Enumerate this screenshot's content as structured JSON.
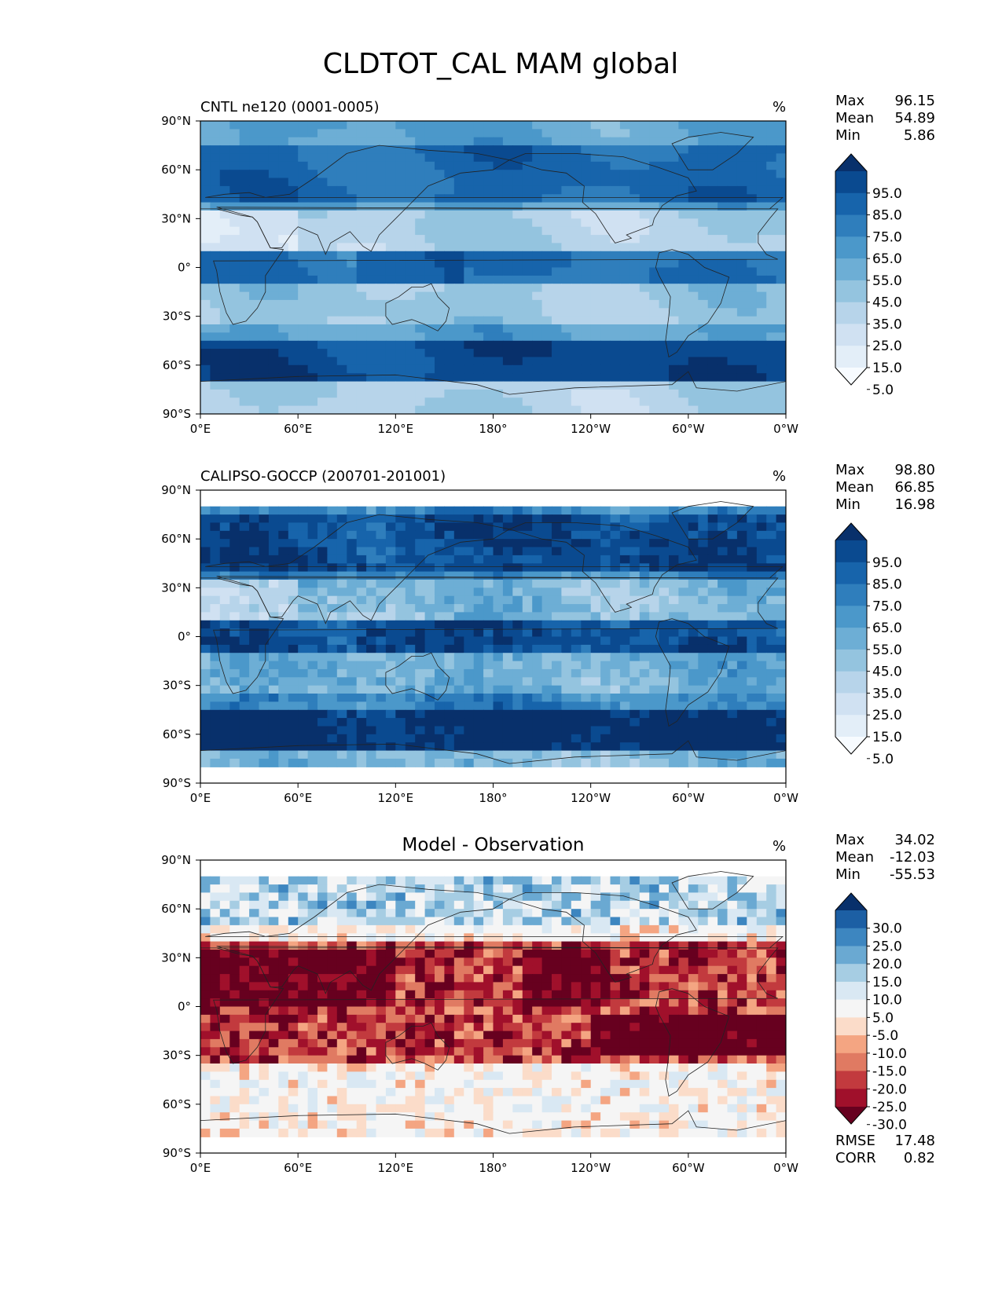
{
  "figure_title": "CLDTOT_CAL MAM global",
  "chart_data": [
    {
      "type": "heatmap",
      "panel": "model",
      "title": "CNTL ne120 (0001-0005)",
      "center_title": "",
      "units": "%",
      "stats": [
        {
          "label": "Max",
          "value": "96.15"
        },
        {
          "label": "Mean",
          "value": "54.89"
        },
        {
          "label": "Min",
          "value": "5.86"
        }
      ],
      "x_ticks": [
        "0°E",
        "60°E",
        "120°E",
        "180°",
        "120°W",
        "60°W",
        "0°W"
      ],
      "y_ticks": [
        "90°N",
        "60°N",
        "30°N",
        "0°",
        "30°S",
        "60°S",
        "90°S"
      ],
      "xlim": [
        0,
        360
      ],
      "ylim": [
        -90,
        90
      ],
      "colorbar": {
        "extend": "both",
        "levels": [
          "95.0",
          "85.0",
          "75.0",
          "65.0",
          "55.0",
          "45.0",
          "35.0",
          "25.0",
          "15.0",
          "5.0"
        ],
        "colors": [
          "#08306b",
          "#0a4a90",
          "#1764ab",
          "#2f7ebc",
          "#4b98ca",
          "#6daed5",
          "#94c4df",
          "#b7d4ea",
          "#d0e1f2",
          "#e3eef8",
          "#f7fbff"
        ]
      },
      "extra_stats": []
    },
    {
      "type": "heatmap",
      "panel": "observation",
      "title": "CALIPSO-GOCCP (200701-201001)",
      "center_title": "",
      "units": "%",
      "stats": [
        {
          "label": "Max",
          "value": "98.80"
        },
        {
          "label": "Mean",
          "value": "66.85"
        },
        {
          "label": "Min",
          "value": "16.98"
        }
      ],
      "x_ticks": [
        "0°E",
        "60°E",
        "120°E",
        "180°",
        "120°W",
        "60°W",
        "0°W"
      ],
      "y_ticks": [
        "90°N",
        "60°N",
        "30°N",
        "0°",
        "30°S",
        "60°S",
        "90°S"
      ],
      "xlim": [
        0,
        360
      ],
      "ylim": [
        -90,
        90
      ],
      "colorbar": {
        "extend": "both",
        "levels": [
          "95.0",
          "85.0",
          "75.0",
          "65.0",
          "55.0",
          "45.0",
          "35.0",
          "25.0",
          "15.0",
          "5.0"
        ],
        "colors": [
          "#08306b",
          "#0a4a90",
          "#1764ab",
          "#2f7ebc",
          "#4b98ca",
          "#6daed5",
          "#94c4df",
          "#b7d4ea",
          "#d0e1f2",
          "#e3eef8",
          "#f7fbff"
        ]
      },
      "extra_stats": []
    },
    {
      "type": "heatmap",
      "panel": "difference",
      "title": "",
      "center_title": "Model - Observation",
      "units": "%",
      "stats": [
        {
          "label": "Max",
          "value": "34.02"
        },
        {
          "label": "Mean",
          "value": "-12.03"
        },
        {
          "label": "Min",
          "value": "-55.53"
        }
      ],
      "x_ticks": [
        "0°E",
        "60°E",
        "120°E",
        "180°",
        "120°W",
        "60°W",
        "0°W"
      ],
      "y_ticks": [
        "90°N",
        "60°N",
        "30°N",
        "0°",
        "30°S",
        "60°S",
        "90°S"
      ],
      "xlim": [
        0,
        360
      ],
      "ylim": [
        -90,
        90
      ],
      "colorbar": {
        "extend": "both",
        "levels": [
          "30.0",
          "25.0",
          "20.0",
          "15.0",
          "10.0",
          "5.0",
          "-5.0",
          "-10.0",
          "-15.0",
          "-20.0",
          "-25.0",
          "-30.0"
        ],
        "colors": [
          "#08306b",
          "#1c5fa4",
          "#3d86c0",
          "#6aa9d2",
          "#a6cde3",
          "#d9e8f3",
          "#f5f5f5",
          "#fbdcc9",
          "#f4a582",
          "#e07a62",
          "#c23a3e",
          "#a0102b",
          "#67001f"
        ]
      },
      "extra_stats": [
        {
          "label": "RMSE",
          "value": "17.48"
        },
        {
          "label": "CORR",
          "value": "0.82"
        }
      ]
    }
  ]
}
